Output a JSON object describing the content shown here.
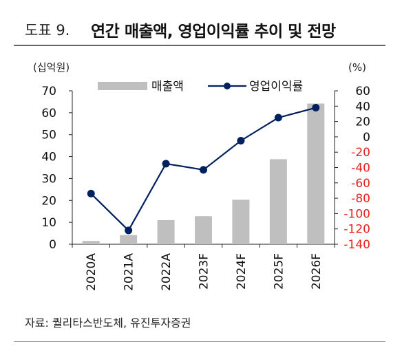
{
  "header": {
    "figure_label": "도표 9.",
    "title": "연간 매출액, 영업이익률 추이 및 전망"
  },
  "source": "자료: 퀄리타스반도체, 유진투자증권",
  "colors": {
    "bar": "#bfbfbf",
    "line": "#002060",
    "negative_tick": "#e8201a",
    "axis": "#222222"
  },
  "chart_data": {
    "type": "bar+line",
    "categories": [
      "2020A",
      "2021A",
      "2022A",
      "2023F",
      "2024F",
      "2025F",
      "2026F"
    ],
    "series": [
      {
        "name": "매출액",
        "type": "bar",
        "axis": "left",
        "values": [
          1.5,
          4.2,
          11.0,
          12.8,
          20.3,
          38.8,
          64.2
        ]
      },
      {
        "name": "영업이익률",
        "type": "line",
        "axis": "right",
        "values": [
          -74,
          -122,
          -35,
          -43,
          -5,
          25,
          38
        ]
      }
    ],
    "left_axis": {
      "unit": "(십억원)",
      "ylim": [
        0,
        70
      ],
      "ticks": [
        "0",
        "10",
        "20",
        "30",
        "40",
        "50",
        "60",
        "70"
      ]
    },
    "right_axis": {
      "unit": "(%)",
      "ylim": [
        -140,
        60
      ],
      "ticks": [
        "60",
        "40",
        "20",
        "0",
        "-20",
        "-40",
        "-60",
        "-80",
        "-100",
        "-120",
        "-140"
      ]
    },
    "legend_position": "top",
    "grid": false
  }
}
